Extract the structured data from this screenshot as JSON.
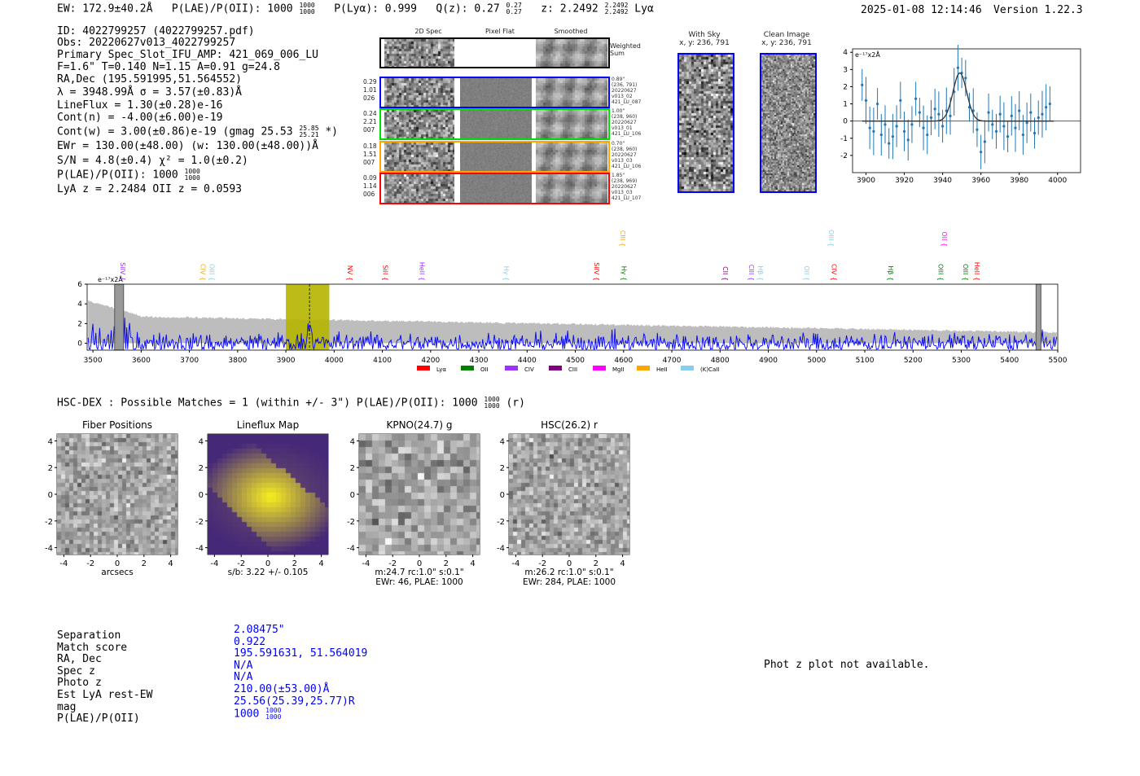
{
  "header": {
    "ew": "EW: 172.9±40.2Å",
    "plae_label": "P(LAE)/P(OII): 1000",
    "plae_hi": "1000",
    "plae_lo": "1000",
    "plya": "P(Lyα): 0.999",
    "qz": "Q(z): 0.27",
    "qz_hi": "0.27",
    "qz_lo": "0.27",
    "z": "z: 2.2492",
    "z_hi": "2.2492",
    "z_lo": "2.2492",
    "line": "Lyα",
    "datetime": "2025-01-08 12:14:46",
    "version": "Version 1.22.3"
  },
  "info": {
    "lines": [
      "ID: 4022799257 (4022799257.pdf)",
      "Obs: 20220627v013_4022799257",
      "Primary Spec_Slot_IFU_AMP: 421_069_006_LU",
      "F=1.6\"  T=0.140  N=1.15  A=0.91  g=24.8",
      "RA,Dec (195.591995,51.564552)",
      "λ = 3948.99Å  σ = 3.57(±0.83)Å",
      "LineFlux = 1.30(±0.28)e-16",
      "Cont(n) = -4.00(±6.00)e-19"
    ],
    "cont_w": "Cont(w) = 3.00(±0.86)e-19 (gmag 25.53",
    "gmag_hi": "25.85",
    "gmag_lo": "25.21",
    "cont_w_end": "*)",
    "lines2": [
      "EWr = 130.00(±48.00) (w: 130.00(±48.00))Å",
      "S/N = 4.8(±0.4)  χ² = 1.0(±0.2)"
    ],
    "plae": "P(LAE)/P(OII): 1000",
    "plae_hi": "1000",
    "plae_lo": "1000",
    "z": "LyA z = 2.2484  OII z = 0.0593"
  },
  "spec2d": {
    "col_titles": [
      "2D Spec",
      "Pixel Flat",
      "Smoothed"
    ],
    "weighted_label": "Weighted Sum",
    "rows": [
      {
        "color": "#0000ff",
        "left": [
          "0.29",
          "1.01",
          "026"
        ],
        "right": [
          "0.89\"",
          "(236, 791)",
          "20220627",
          "v013_02",
          "421_LU_087"
        ]
      },
      {
        "color": "#00dd00",
        "left": [
          "0.24",
          "2.21",
          "007"
        ],
        "right": [
          "1.00\"",
          "(238, 960)",
          "20220627",
          "v013_01",
          "421_LU_106"
        ]
      },
      {
        "color": "#ffa500",
        "left": [
          "0.18",
          "1.51",
          "007"
        ],
        "right": [
          "0.70\"",
          "(238, 960)",
          "20220627",
          "v013_03",
          "421_LU_106"
        ]
      },
      {
        "color": "#ff0000",
        "left": [
          "0.09",
          "1.14",
          "006"
        ],
        "right": [
          "1.85\"",
          "(238, 969)",
          "20220627",
          "v013_03",
          "421_LU_107"
        ]
      }
    ]
  },
  "ccd": {
    "with_sky": "With Sky",
    "with_sky_xy": "x, y: 236, 791",
    "clean": "Clean Image",
    "clean_xy": "x, y: 236, 791"
  },
  "chart_data": [
    {
      "type": "scatter",
      "name": "line-fit",
      "ylabel": "e⁻¹⁷x2Å",
      "xlim": [
        3893,
        4012
      ],
      "ylim": [
        -3,
        4.2
      ],
      "xticks": [
        3900,
        3920,
        3940,
        3960,
        3980,
        4000
      ],
      "yticks": [
        -2,
        -1,
        0,
        1,
        2,
        3,
        4
      ],
      "fit": {
        "center": 3948.99,
        "sigma": 3.57,
        "amplitude": 2.8
      },
      "x": [
        3898,
        3900,
        3902,
        3904,
        3906,
        3908,
        3910,
        3912,
        3914,
        3916,
        3918,
        3920,
        3922,
        3924,
        3926,
        3928,
        3930,
        3932,
        3934,
        3936,
        3938,
        3940,
        3942,
        3944,
        3946,
        3948,
        3950,
        3952,
        3954,
        3956,
        3958,
        3960,
        3962,
        3964,
        3966,
        3968,
        3970,
        3972,
        3974,
        3976,
        3978,
        3980,
        3982,
        3984,
        3986,
        3988,
        3990,
        3992,
        3994,
        3996
      ],
      "y": [
        2.1,
        1.2,
        -0.4,
        -0.6,
        1.0,
        -0.8,
        -0.2,
        -1.3,
        -0.9,
        -0.3,
        1.2,
        -0.6,
        -1.1,
        -0.2,
        1.3,
        0.5,
        -0.4,
        -0.8,
        0.2,
        0.7,
        0.4,
        -0.3,
        0.6,
        0.3,
        1.7,
        3.1,
        2.8,
        2.5,
        0.8,
        0.6,
        -0.5,
        -1.8,
        -1.2,
        0.5,
        -0.2,
        -0.6,
        0.4,
        -0.3,
        -0.9,
        0.3,
        -0.4,
        0.6,
        -0.8,
        -0.1,
        0.5,
        -0.7,
        0.2,
        0.4,
        0.8,
        1.0
      ]
    },
    {
      "type": "line",
      "name": "full-spectrum",
      "ylabel": "e⁻¹⁷x2Å",
      "xlim": [
        3488,
        5500
      ],
      "ylim": [
        -0.7,
        6
      ],
      "xticks": [
        3500,
        3600,
        3700,
        3800,
        3900,
        4000,
        4100,
        4200,
        4300,
        4400,
        4500,
        4600,
        4700,
        4800,
        4900,
        5000,
        5100,
        5200,
        5300,
        5400,
        5500
      ],
      "yticks": [
        0,
        2,
        4,
        6
      ],
      "highlight": [
        3900,
        3990
      ],
      "line_center": 3949,
      "line_labels": [
        {
          "name": "SiIV",
          "wave": 3562,
          "color": "#9933ff",
          "row": "low"
        },
        {
          "name": "CIV",
          "wave": 3733,
          "color": "#ffa500",
          "row": "low"
        },
        {
          "name": "OIII",
          "wave": 3743,
          "color": "#87ceeb",
          "row": "low"
        },
        {
          "name": "NV",
          "wave": 4033,
          "color": "#ff0000",
          "row": "low"
        },
        {
          "name": "SiII",
          "wave": 4107,
          "color": "#ff0000",
          "row": "low"
        },
        {
          "name": "HeII",
          "wave": 4183,
          "color": "#9933ff",
          "row": "low"
        },
        {
          "name": "Hγ",
          "wave": 4357,
          "color": "#87ceeb",
          "row": "low"
        },
        {
          "name": "SiIV",
          "wave": 4545,
          "color": "#ff0000",
          "row": "low"
        },
        {
          "name": "CIII",
          "wave": 4599,
          "color": "#ffa500",
          "row": "high"
        },
        {
          "name": "Hγ",
          "wave": 4601,
          "color": "#008000",
          "row": "low"
        },
        {
          "name": "CII",
          "wave": 4811,
          "color": "#800080",
          "row": "low"
        },
        {
          "name": "CIII",
          "wave": 4869,
          "color": "#9933ff",
          "row": "low"
        },
        {
          "name": "Hβ",
          "wave": 4881,
          "color": "#87ceeb",
          "row": "low"
        },
        {
          "name": "OII",
          "wave": 4980,
          "color": "#87ceeb",
          "row": "low"
        },
        {
          "name": "OIII",
          "wave": 5031,
          "color": "#87ceeb",
          "row": "high"
        },
        {
          "name": "CIV",
          "wave": 5037,
          "color": "#ff0000",
          "row": "low"
        },
        {
          "name": "Hβ",
          "wave": 5154,
          "color": "#008000",
          "row": "low"
        },
        {
          "name": "OIII",
          "wave": 5258,
          "color": "#008000",
          "row": "low"
        },
        {
          "name": "OII",
          "wave": 5265,
          "color": "#ff00ff",
          "row": "high"
        },
        {
          "name": "OIII",
          "wave": 5309,
          "color": "#008000",
          "row": "low"
        },
        {
          "name": "HeII",
          "wave": 5333,
          "color": "#ff0000",
          "row": "low"
        }
      ],
      "legend": [
        {
          "name": "Lyα",
          "color": "#ff0000"
        },
        {
          "name": "OII",
          "color": "#008000"
        },
        {
          "name": "CIV",
          "color": "#9933ff"
        },
        {
          "name": "CIII",
          "color": "#800080"
        },
        {
          "name": "MgII",
          "color": "#ff00ff"
        },
        {
          "name": "HeII",
          "color": "#ffa500"
        },
        {
          "name": "(K)CaII",
          "color": "#87ceeb"
        }
      ],
      "legend_placement": "bottom"
    }
  ],
  "hsc": {
    "title": "HSC-DEX : Possible Matches = 1 (within +/- 3\")  P(LAE)/P(OII): 1000",
    "hi": "1000",
    "lo": "1000",
    "suffix": "(r)"
  },
  "cutouts": [
    {
      "title": "Fiber Positions",
      "caption1": "arcsecs",
      "caption2": ""
    },
    {
      "title": "Lineflux Map",
      "caption1": "s/b: 3.22 +/- 0.105",
      "caption2": ""
    },
    {
      "title": "KPNO(24.7) g",
      "caption1": "m:24.7 rc:1.0\"  s:0.1\"",
      "caption2": "EWr: 46, PLAE: 1000"
    },
    {
      "title": "HSC(26.2) r",
      "caption1": "m:26.2 rc:1.0\"  s:0.1\"",
      "caption2": "EWr: 284, PLAE: 1000"
    }
  ],
  "cutout_axis": {
    "ticks": [
      "-4",
      "-2",
      "0",
      "2",
      "4"
    ],
    "north": "N",
    "east": "E"
  },
  "match": {
    "labels": [
      "Separation",
      "Match score",
      "RA, Dec",
      "Spec z",
      "Photo z",
      "Est LyA rest-EW",
      "mag",
      "P(LAE)/P(OII)"
    ],
    "values": [
      "2.08475\"",
      "0.922",
      "195.591631, 51.564019",
      "N/A",
      "N/A",
      "210.00(±53.00)Å",
      "25.56(25.39,25.77)R",
      "1000"
    ],
    "plae_hi": "1000",
    "plae_lo": "1000"
  },
  "photz": "Phot z plot not available."
}
